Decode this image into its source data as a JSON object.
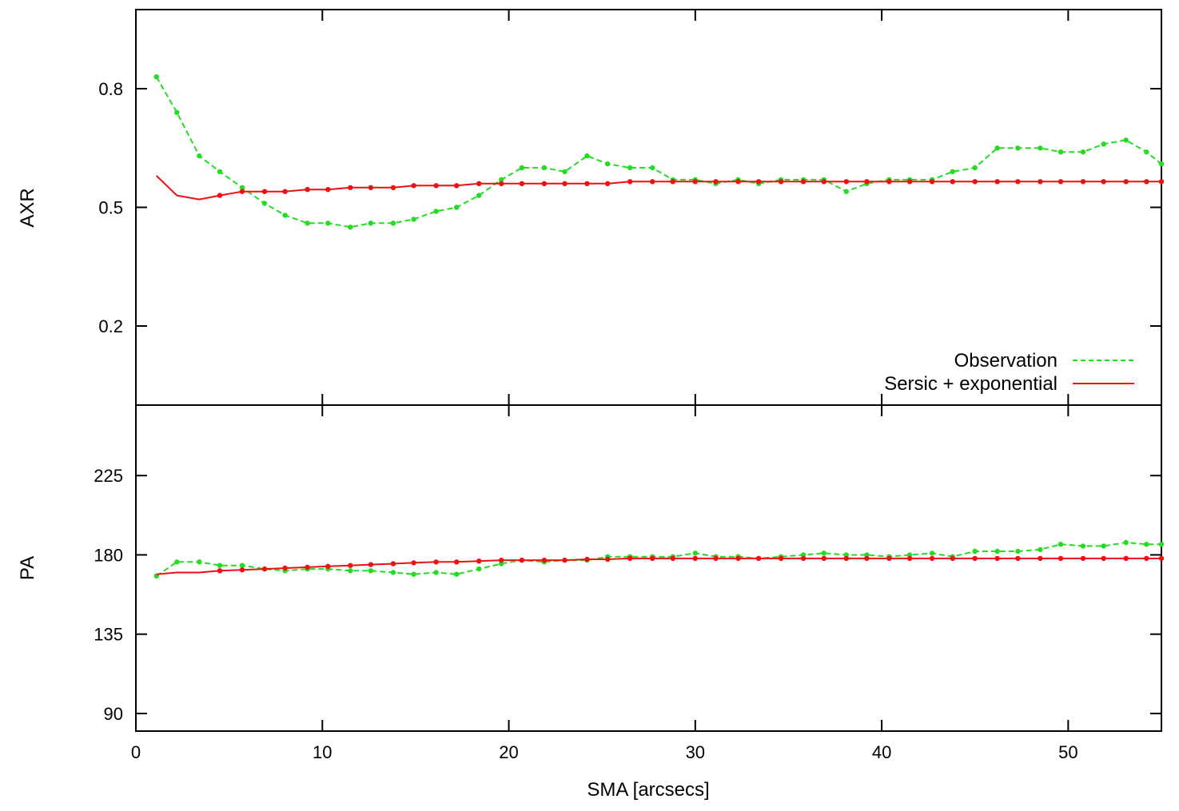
{
  "chart_data": [
    {
      "type": "line",
      "ylabel": "AXR",
      "xlabel": "",
      "xlim": [
        0,
        55
      ],
      "ylim": [
        0.0,
        1.0
      ],
      "yticks": [
        "0.2",
        "0.5",
        "0.8"
      ],
      "xticks": [],
      "grid": false,
      "legend_position": "bottom-right",
      "colors": {
        "observation": "#22dd22",
        "model": "#ee1111"
      },
      "series": [
        {
          "name": "Observation",
          "style": "dashed",
          "x": [
            1.1,
            2.2,
            3.4,
            4.5,
            5.7,
            6.9,
            8.0,
            9.2,
            10.3,
            11.5,
            12.6,
            13.8,
            14.9,
            16.1,
            17.2,
            18.4,
            19.6,
            20.7,
            21.9,
            23.0,
            24.2,
            25.3,
            26.5,
            27.7,
            28.8,
            30.0,
            31.1,
            32.3,
            33.4,
            34.6,
            35.8,
            36.9,
            38.1,
            39.2,
            40.4,
            41.5,
            42.7,
            43.8,
            45.0,
            46.2,
            47.3,
            48.5,
            49.6,
            50.8,
            51.9,
            53.1,
            54.2,
            55.0
          ],
          "y": [
            0.83,
            0.74,
            0.63,
            0.59,
            0.55,
            0.51,
            0.48,
            0.46,
            0.46,
            0.45,
            0.46,
            0.46,
            0.47,
            0.49,
            0.5,
            0.53,
            0.57,
            0.6,
            0.6,
            0.59,
            0.63,
            0.61,
            0.6,
            0.6,
            0.57,
            0.57,
            0.56,
            0.57,
            0.56,
            0.57,
            0.57,
            0.57,
            0.54,
            0.56,
            0.57,
            0.57,
            0.57,
            0.59,
            0.6,
            0.65,
            0.65,
            0.65,
            0.64,
            0.64,
            0.66,
            0.67,
            0.64,
            0.61
          ]
        },
        {
          "name": "Sersic + exponential",
          "style": "solid",
          "x": [
            1.1,
            2.2,
            3.4,
            4.5,
            5.7,
            6.9,
            8.0,
            9.2,
            10.3,
            11.5,
            12.6,
            13.8,
            14.9,
            16.1,
            17.2,
            18.4,
            19.6,
            20.7,
            21.9,
            23.0,
            24.2,
            25.3,
            26.5,
            27.7,
            28.8,
            30.0,
            31.1,
            32.3,
            33.4,
            34.6,
            35.8,
            36.9,
            38.1,
            39.2,
            40.4,
            41.5,
            42.7,
            43.8,
            45.0,
            46.2,
            47.3,
            48.5,
            49.6,
            50.8,
            51.9,
            53.1,
            54.2,
            55.0
          ],
          "y": [
            0.58,
            0.53,
            0.52,
            0.53,
            0.54,
            0.54,
            0.54,
            0.545,
            0.545,
            0.55,
            0.55,
            0.55,
            0.555,
            0.555,
            0.555,
            0.56,
            0.56,
            0.56,
            0.56,
            0.56,
            0.56,
            0.56,
            0.565,
            0.565,
            0.565,
            0.565,
            0.565,
            0.565,
            0.565,
            0.565,
            0.565,
            0.565,
            0.565,
            0.565,
            0.565,
            0.565,
            0.565,
            0.565,
            0.565,
            0.565,
            0.565,
            0.565,
            0.565,
            0.565,
            0.565,
            0.565,
            0.565,
            0.565
          ]
        }
      ]
    },
    {
      "type": "line",
      "ylabel": "PA",
      "xlabel": "SMA [arcsecs]",
      "xlim": [
        0,
        55
      ],
      "ylim": [
        80,
        265
      ],
      "yticks": [
        "90",
        "135",
        "180",
        "225"
      ],
      "xticks": [
        "0",
        "10",
        "20",
        "30",
        "40",
        "50"
      ],
      "grid": false,
      "series": [
        {
          "style": "dashed",
          "x": [
            1.1,
            2.2,
            3.4,
            4.5,
            5.7,
            6.9,
            8.0,
            9.2,
            10.3,
            11.5,
            12.6,
            13.8,
            14.9,
            16.1,
            17.2,
            18.4,
            19.6,
            20.7,
            21.9,
            23.0,
            24.2,
            25.3,
            26.5,
            27.7,
            28.8,
            30.0,
            31.1,
            32.3,
            33.4,
            34.6,
            35.8,
            36.9,
            38.1,
            39.2,
            40.4,
            41.5,
            42.7,
            43.8,
            45.0,
            46.2,
            47.3,
            48.5,
            49.6,
            50.8,
            51.9,
            53.1,
            54.2,
            55.0
          ],
          "y": [
            168,
            176,
            176,
            174,
            174,
            172,
            171,
            172,
            172,
            171,
            171,
            170,
            169,
            170,
            169,
            172,
            175,
            177,
            176,
            177,
            177,
            179,
            179,
            179,
            179,
            181,
            179,
            179,
            178,
            179,
            180,
            181,
            180,
            180,
            179,
            180,
            181,
            179,
            182,
            182,
            182,
            183,
            186,
            185,
            185,
            187,
            186,
            186
          ]
        },
        {
          "style": "solid",
          "x": [
            1.1,
            2.2,
            3.4,
            4.5,
            5.7,
            6.9,
            8.0,
            9.2,
            10.3,
            11.5,
            12.6,
            13.8,
            14.9,
            16.1,
            17.2,
            18.4,
            19.6,
            20.7,
            21.9,
            23.0,
            24.2,
            25.3,
            26.5,
            27.7,
            28.8,
            30.0,
            31.1,
            32.3,
            33.4,
            34.6,
            35.8,
            36.9,
            38.1,
            39.2,
            40.4,
            41.5,
            42.7,
            43.8,
            45.0,
            46.2,
            47.3,
            48.5,
            49.6,
            50.8,
            51.9,
            53.1,
            54.2,
            55.0
          ],
          "y": [
            169,
            170,
            170,
            171,
            171.5,
            172,
            172.5,
            173,
            173.5,
            174,
            174.5,
            175,
            175.5,
            176,
            176,
            176.5,
            177,
            177,
            177,
            177,
            177.5,
            177.5,
            178,
            178,
            178,
            178,
            178,
            178,
            178,
            178,
            178,
            178,
            178,
            178,
            178,
            178,
            178,
            178,
            178,
            178,
            178,
            178,
            178,
            178,
            178,
            178,
            178,
            178
          ]
        }
      ]
    }
  ]
}
